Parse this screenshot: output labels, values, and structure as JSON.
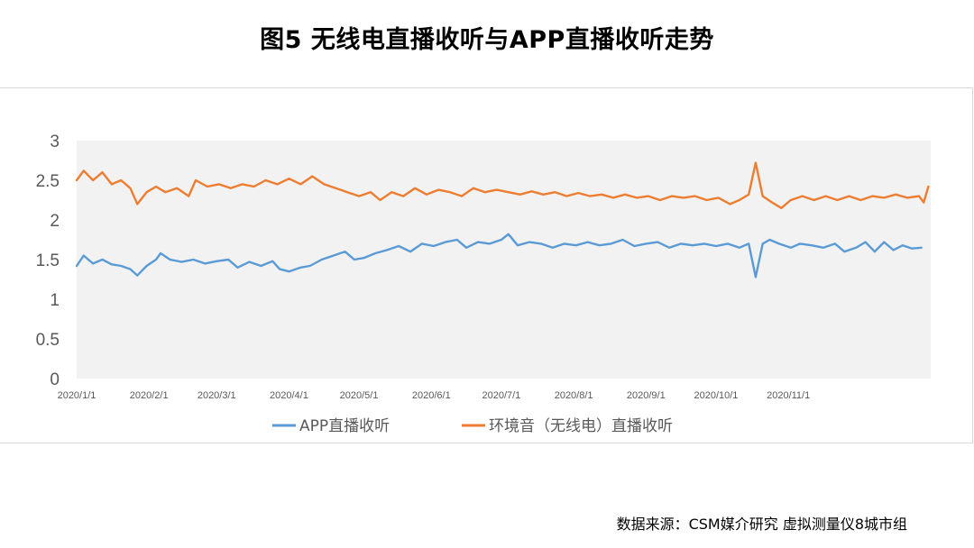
{
  "title": "图5 无线电直播收听与APP直播收听走势",
  "source": "数据来源：CSM媒介研究 虚拟测量仪8城市组",
  "colors": {
    "app": "#5b9bd5",
    "radio": "#ed7d31",
    "plot_bg": "#f2f2f2"
  },
  "chart_data": {
    "type": "line",
    "title": "",
    "xlabel": "",
    "ylabel": "",
    "ylim": [
      0,
      3
    ],
    "yticks": [
      "0",
      "0.5",
      "1",
      "1.5",
      "2",
      "2.5",
      "3"
    ],
    "xticks": [
      "2020/1/1",
      "2020/2/1",
      "2020/3/1",
      "2020/4/1",
      "2020/5/1",
      "2020/6/1",
      "2020/7/1",
      "2020/8/1",
      "2020/9/1",
      "2020/10/1",
      "2020/11/1"
    ],
    "x_range": [
      "2020/1/1",
      "2020/12/31"
    ],
    "grid": true,
    "legend": "bottom",
    "series": [
      {
        "name": "APP直播收听",
        "key": "app",
        "points": [
          [
            "2020/1/1",
            1.42
          ],
          [
            "2020/1/4",
            1.55
          ],
          [
            "2020/1/8",
            1.45
          ],
          [
            "2020/1/12",
            1.5
          ],
          [
            "2020/1/16",
            1.44
          ],
          [
            "2020/1/20",
            1.42
          ],
          [
            "2020/1/24",
            1.38
          ],
          [
            "2020/1/27",
            1.3
          ],
          [
            "2020/1/31",
            1.42
          ],
          [
            "2020/2/4",
            1.5
          ],
          [
            "2020/2/6",
            1.58
          ],
          [
            "2020/2/10",
            1.5
          ],
          [
            "2020/2/15",
            1.47
          ],
          [
            "2020/2/20",
            1.5
          ],
          [
            "2020/2/25",
            1.45
          ],
          [
            "2020/3/1",
            1.48
          ],
          [
            "2020/3/6",
            1.5
          ],
          [
            "2020/3/10",
            1.4
          ],
          [
            "2020/3/15",
            1.47
          ],
          [
            "2020/3/20",
            1.42
          ],
          [
            "2020/3/25",
            1.48
          ],
          [
            "2020/3/28",
            1.38
          ],
          [
            "2020/4/1",
            1.35
          ],
          [
            "2020/4/6",
            1.4
          ],
          [
            "2020/4/10",
            1.42
          ],
          [
            "2020/4/15",
            1.5
          ],
          [
            "2020/4/20",
            1.55
          ],
          [
            "2020/4/25",
            1.6
          ],
          [
            "2020/4/29",
            1.5
          ],
          [
            "2020/5/3",
            1.52
          ],
          [
            "2020/5/8",
            1.58
          ],
          [
            "2020/5/13",
            1.62
          ],
          [
            "2020/5/18",
            1.67
          ],
          [
            "2020/5/23",
            1.6
          ],
          [
            "2020/5/28",
            1.7
          ],
          [
            "2020/6/2",
            1.67
          ],
          [
            "2020/6/7",
            1.72
          ],
          [
            "2020/6/12",
            1.75
          ],
          [
            "2020/6/16",
            1.65
          ],
          [
            "2020/6/21",
            1.72
          ],
          [
            "2020/6/26",
            1.7
          ],
          [
            "2020/7/1",
            1.75
          ],
          [
            "2020/7/4",
            1.82
          ],
          [
            "2020/7/8",
            1.68
          ],
          [
            "2020/7/13",
            1.72
          ],
          [
            "2020/7/18",
            1.7
          ],
          [
            "2020/7/23",
            1.65
          ],
          [
            "2020/7/28",
            1.7
          ],
          [
            "2020/8/2",
            1.68
          ],
          [
            "2020/8/7",
            1.72
          ],
          [
            "2020/8/12",
            1.68
          ],
          [
            "2020/8/17",
            1.7
          ],
          [
            "2020/8/22",
            1.75
          ],
          [
            "2020/8/27",
            1.67
          ],
          [
            "2020/9/1",
            1.7
          ],
          [
            "2020/9/6",
            1.72
          ],
          [
            "2020/9/11",
            1.65
          ],
          [
            "2020/9/16",
            1.7
          ],
          [
            "2020/9/21",
            1.68
          ],
          [
            "2020/9/26",
            1.7
          ],
          [
            "2020/10/1",
            1.67
          ],
          [
            "2020/10/6",
            1.7
          ],
          [
            "2020/10/11",
            1.65
          ],
          [
            "2020/10/15",
            1.7
          ],
          [
            "2020/10/18",
            1.28
          ],
          [
            "2020/10/21",
            1.7
          ],
          [
            "2020/10/24",
            1.75
          ],
          [
            "2020/10/28",
            1.7
          ],
          [
            "2020/11/2",
            1.65
          ],
          [
            "2020/11/6",
            1.7
          ],
          [
            "2020/11/11",
            1.68
          ],
          [
            "2020/11/16",
            1.65
          ],
          [
            "2020/11/21",
            1.7
          ],
          [
            "2020/11/25",
            1.6
          ],
          [
            "2020/11/30",
            1.65
          ],
          [
            "2020/12/4",
            1.72
          ],
          [
            "2020/12/8",
            1.6
          ],
          [
            "2020/12/12",
            1.72
          ],
          [
            "2020/12/16",
            1.62
          ],
          [
            "2020/12/20",
            1.68
          ],
          [
            "2020/12/24",
            1.64
          ],
          [
            "2020/12/28",
            1.65
          ]
        ]
      },
      {
        "name": "环境音（无线电）直播收听",
        "key": "radio",
        "points": [
          [
            "2020/1/1",
            2.5
          ],
          [
            "2020/1/4",
            2.62
          ],
          [
            "2020/1/8",
            2.5
          ],
          [
            "2020/1/12",
            2.6
          ],
          [
            "2020/1/16",
            2.45
          ],
          [
            "2020/1/20",
            2.5
          ],
          [
            "2020/1/24",
            2.4
          ],
          [
            "2020/1/27",
            2.2
          ],
          [
            "2020/1/31",
            2.35
          ],
          [
            "2020/2/4",
            2.42
          ],
          [
            "2020/2/8",
            2.35
          ],
          [
            "2020/2/13",
            2.4
          ],
          [
            "2020/2/18",
            2.3
          ],
          [
            "2020/2/21",
            2.5
          ],
          [
            "2020/2/26",
            2.42
          ],
          [
            "2020/3/2",
            2.45
          ],
          [
            "2020/3/7",
            2.4
          ],
          [
            "2020/3/12",
            2.45
          ],
          [
            "2020/3/17",
            2.42
          ],
          [
            "2020/3/22",
            2.5
          ],
          [
            "2020/3/27",
            2.45
          ],
          [
            "2020/4/1",
            2.52
          ],
          [
            "2020/4/6",
            2.45
          ],
          [
            "2020/4/11",
            2.55
          ],
          [
            "2020/4/16",
            2.45
          ],
          [
            "2020/4/21",
            2.4
          ],
          [
            "2020/4/26",
            2.35
          ],
          [
            "2020/5/1",
            2.3
          ],
          [
            "2020/5/6",
            2.35
          ],
          [
            "2020/5/10",
            2.25
          ],
          [
            "2020/5/15",
            2.35
          ],
          [
            "2020/5/20",
            2.3
          ],
          [
            "2020/5/25",
            2.4
          ],
          [
            "2020/5/30",
            2.32
          ],
          [
            "2020/6/4",
            2.38
          ],
          [
            "2020/6/9",
            2.35
          ],
          [
            "2020/6/14",
            2.3
          ],
          [
            "2020/6/19",
            2.4
          ],
          [
            "2020/6/24",
            2.35
          ],
          [
            "2020/6/29",
            2.38
          ],
          [
            "2020/7/4",
            2.35
          ],
          [
            "2020/7/9",
            2.32
          ],
          [
            "2020/7/14",
            2.36
          ],
          [
            "2020/7/19",
            2.32
          ],
          [
            "2020/7/24",
            2.35
          ],
          [
            "2020/7/29",
            2.3
          ],
          [
            "2020/8/3",
            2.34
          ],
          [
            "2020/8/8",
            2.3
          ],
          [
            "2020/8/13",
            2.32
          ],
          [
            "2020/8/18",
            2.28
          ],
          [
            "2020/8/23",
            2.32
          ],
          [
            "2020/8/28",
            2.28
          ],
          [
            "2020/9/2",
            2.3
          ],
          [
            "2020/9/7",
            2.25
          ],
          [
            "2020/9/12",
            2.3
          ],
          [
            "2020/9/17",
            2.28
          ],
          [
            "2020/9/22",
            2.3
          ],
          [
            "2020/9/27",
            2.25
          ],
          [
            "2020/10/2",
            2.28
          ],
          [
            "2020/10/7",
            2.2
          ],
          [
            "2020/10/11",
            2.25
          ],
          [
            "2020/10/15",
            2.32
          ],
          [
            "2020/10/18",
            2.72
          ],
          [
            "2020/10/21",
            2.3
          ],
          [
            "2020/10/25",
            2.22
          ],
          [
            "2020/10/29",
            2.15
          ],
          [
            "2020/11/2",
            2.25
          ],
          [
            "2020/11/7",
            2.3
          ],
          [
            "2020/11/12",
            2.25
          ],
          [
            "2020/11/17",
            2.3
          ],
          [
            "2020/11/22",
            2.25
          ],
          [
            "2020/11/27",
            2.3
          ],
          [
            "2020/12/2",
            2.25
          ],
          [
            "2020/12/7",
            2.3
          ],
          [
            "2020/12/12",
            2.28
          ],
          [
            "2020/12/17",
            2.32
          ],
          [
            "2020/12/22",
            2.28
          ],
          [
            "2020/12/27",
            2.3
          ],
          [
            "2020/12/29",
            2.22
          ],
          [
            "2020/12/31",
            2.42
          ]
        ]
      }
    ]
  }
}
